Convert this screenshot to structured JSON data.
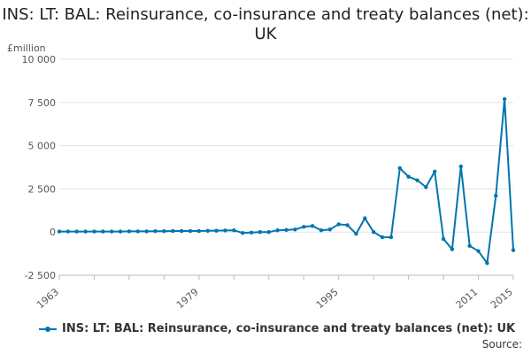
{
  "title": "INS: LT: BAL: Reinsurance, co-insurance and treaty balances (net): UK",
  "source_label": "Source:",
  "chart_data": {
    "type": "line",
    "title": "INS: LT: BAL: Reinsurance, co-insurance and treaty balances (net): UK",
    "ylabel": "£million",
    "xlabel": "",
    "ylim": [
      -2500,
      10000
    ],
    "xlim": [
      1963,
      2015
    ],
    "y_ticks": [
      -2500,
      0,
      2500,
      5000,
      7500,
      10000
    ],
    "y_tick_labels": [
      "-2 500",
      "0",
      "2 500",
      "5 000",
      "7 500",
      "10 000"
    ],
    "x_ticks": [
      1963,
      1979,
      1995,
      2011,
      2015
    ],
    "x_tick_labels": [
      "1963",
      "1979",
      "1995",
      "2011",
      "2015"
    ],
    "grid": "horizontal",
    "legend": "bottom",
    "color": "#0075b0",
    "series": [
      {
        "name": "INS: LT: BAL: Reinsurance, co-insurance and treaty balances (net): UK",
        "x": [
          1963,
          1964,
          1965,
          1966,
          1967,
          1968,
          1969,
          1970,
          1971,
          1972,
          1973,
          1974,
          1975,
          1976,
          1977,
          1978,
          1979,
          1980,
          1981,
          1982,
          1983,
          1984,
          1985,
          1986,
          1987,
          1988,
          1989,
          1990,
          1991,
          1992,
          1993,
          1994,
          1995,
          1996,
          1997,
          1998,
          1999,
          2000,
          2001,
          2002,
          2003,
          2004,
          2005,
          2006,
          2007,
          2008,
          2009,
          2010,
          2011,
          2012,
          2013,
          2014,
          2015
        ],
        "values": [
          30,
          30,
          30,
          30,
          30,
          30,
          30,
          30,
          40,
          40,
          40,
          50,
          50,
          60,
          60,
          60,
          60,
          70,
          80,
          90,
          100,
          -50,
          -30,
          0,
          0,
          100,
          120,
          150,
          300,
          350,
          100,
          150,
          450,
          400,
          -100,
          800,
          0,
          -300,
          -300,
          3700,
          3200,
          3000,
          2600,
          3500,
          -400,
          -1000,
          3800,
          -800,
          -1100,
          -1800,
          2100,
          7700,
          -1050
        ]
      }
    ]
  }
}
